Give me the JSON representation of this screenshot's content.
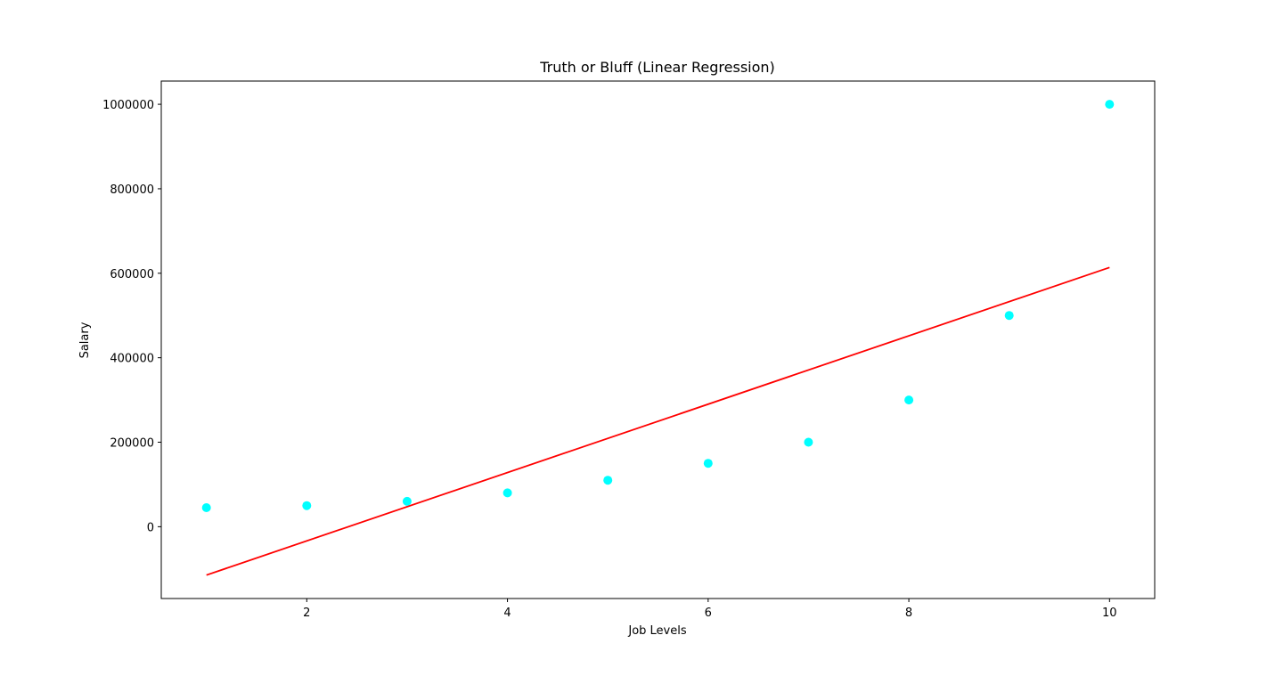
{
  "chart_data": {
    "type": "scatter",
    "title": "Truth or Bluff (Linear Regression)",
    "xlabel": "Job Levels",
    "ylabel": "Salary",
    "xlim": [
      0.55,
      10.45
    ],
    "ylim": [
      -170000,
      1055000
    ],
    "xticks": [
      2,
      4,
      6,
      8,
      10
    ],
    "yticks": [
      0,
      200000,
      400000,
      600000,
      800000,
      1000000
    ],
    "grid": false,
    "legend": "none",
    "series": [
      {
        "kind": "scatter",
        "color": "#00ffff",
        "x": [
          1,
          2,
          3,
          4,
          5,
          6,
          7,
          8,
          9,
          10
        ],
        "y": [
          45000,
          50000,
          60000,
          80000,
          110000,
          150000,
          200000,
          300000,
          500000,
          1000000
        ]
      },
      {
        "kind": "line",
        "color": "#ff0000",
        "x": [
          1,
          10
        ],
        "y": [
          -114455,
          613697
        ]
      }
    ]
  }
}
